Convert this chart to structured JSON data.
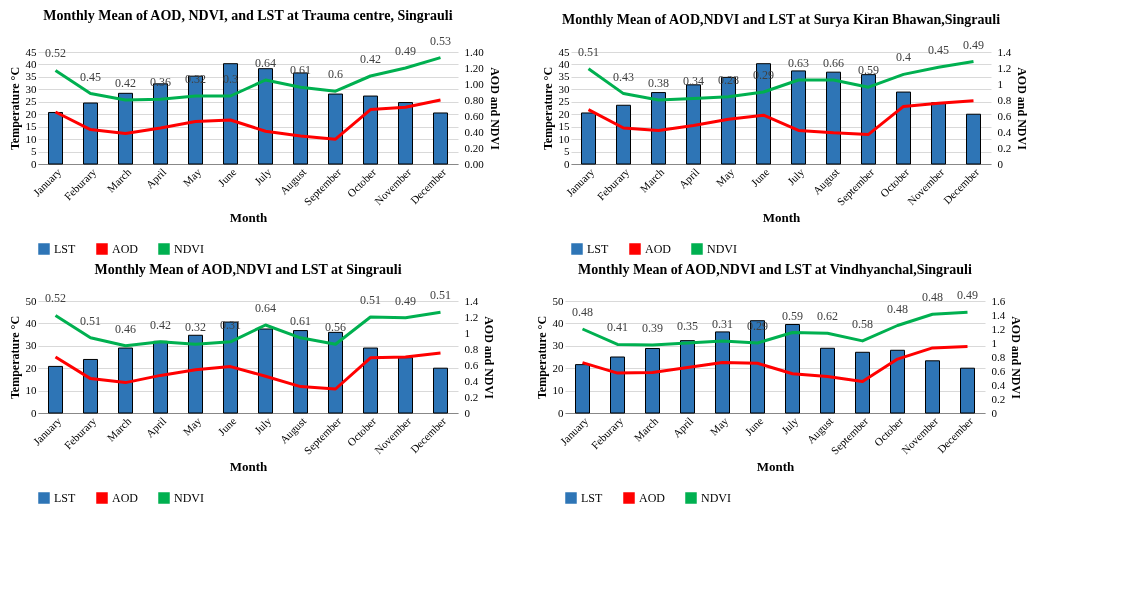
{
  "chart_data": [
    {
      "type": "bar",
      "title": "Monthly Mean of  AOD, NDVI, and LST at Trauma centre, Singrauli",
      "xlabel": "Month",
      "ylabel": "Temperature °C",
      "y2label": "AOD and NDVI",
      "categories": [
        "January",
        "Feburary",
        "March",
        "April",
        "May",
        "June",
        "July",
        "August",
        "September",
        "October",
        "November",
        "December"
      ],
      "ylim": [
        0,
        45
      ],
      "yticks": [
        0,
        5,
        10,
        15,
        20,
        25,
        30,
        35,
        40,
        45
      ],
      "y2lim": [
        0,
        1.4
      ],
      "y2ticks": [
        {
          "value": 0,
          "label": "0.00"
        },
        {
          "value": 0.2,
          "label": "0.20"
        },
        {
          "value": 0.4,
          "label": "0.40"
        },
        {
          "value": 0.6,
          "label": "0.60"
        },
        {
          "value": 0.8,
          "label": "0.80"
        },
        {
          "value": 1,
          "label": "1.00"
        },
        {
          "value": 1.2,
          "label": "1.20"
        },
        {
          "value": 1.4,
          "label": "1.40"
        }
      ],
      "grid": "y",
      "legend": "bottom",
      "series": [
        {
          "name": "LST",
          "color": "#2e75b6",
          "values": [
            20.7,
            24.5,
            28.4,
            32.2,
            35.3,
            40.3,
            38.3,
            36.6,
            28.1,
            27.3,
            24.7,
            20.5
          ]
        },
        {
          "name": "AOD",
          "type": "line",
          "axis": "y2",
          "color": "#ff0000",
          "values": [
            0.65,
            0.43,
            0.38,
            0.45,
            0.53,
            0.55,
            0.41,
            0.35,
            0.31,
            0.68,
            0.71,
            0.8
          ]
        },
        {
          "name": "NDVI",
          "type": "line",
          "axis": "y2",
          "color": "#00b050",
          "values": [
            1.17,
            0.88,
            0.8,
            0.81,
            0.85,
            0.85,
            1.05,
            0.96,
            0.91,
            1.1,
            1.2,
            1.33
          ]
        }
      ],
      "annotations": [
        "0.52",
        "0.45",
        "0.42",
        "0.36",
        "0.32",
        "0.3",
        "0.64",
        "0.61",
        "0.6",
        "0.42",
        "0.49",
        "0.53"
      ]
    },
    {
      "type": "bar",
      "title": "Monthly Mean of  AOD,NDVI and LST at Surya Kiran Bhawan,Singrauli",
      "xlabel": "Month",
      "ylabel": "Temperature °C",
      "y2label": "AOD and NDVI",
      "categories": [
        "January",
        "Feburary",
        "March",
        "April",
        "May",
        "June",
        "July",
        "August",
        "September",
        "October",
        "November",
        "December"
      ],
      "ylim": [
        0,
        45
      ],
      "yticks": [
        0,
        5,
        10,
        15,
        20,
        25,
        30,
        35,
        40,
        45
      ],
      "y2lim": [
        0,
        1.4
      ],
      "y2ticks": [
        0,
        0.2,
        0.4,
        0.6,
        0.8,
        1,
        1.2,
        1.4
      ],
      "grid": "y",
      "legend": "bottom",
      "series": [
        {
          "name": "LST",
          "color": "#2e75b6",
          "values": [
            20.5,
            23.6,
            28.7,
            31.8,
            34.8,
            40.3,
            37.4,
            36.9,
            35.9,
            28.9,
            24.6,
            20.0
          ]
        },
        {
          "name": "AOD",
          "type": "line",
          "axis": "y2",
          "color": "#ff0000",
          "values": [
            0.68,
            0.45,
            0.42,
            0.48,
            0.56,
            0.61,
            0.42,
            0.39,
            0.37,
            0.72,
            0.76,
            0.79
          ]
        },
        {
          "name": "NDVI",
          "type": "line",
          "axis": "y2",
          "color": "#00b050",
          "values": [
            1.19,
            0.88,
            0.8,
            0.82,
            0.84,
            0.9,
            1.05,
            1.05,
            0.96,
            1.12,
            1.21,
            1.28
          ]
        }
      ],
      "annotations": [
        "0.51",
        "0.43",
        "0.38",
        "0.34",
        "0.28",
        "0.29",
        "0.63",
        "0.66",
        "0.59",
        "0.4",
        "0.45",
        "0.49"
      ]
    },
    {
      "type": "bar",
      "title": "Monthly Mean of  AOD,NDVI and LST at Singrauli",
      "xlabel": "Month",
      "ylabel": "Temperature °C",
      "y2label": "AOD and NDVI",
      "categories": [
        "January",
        "Feburary",
        "March",
        "April",
        "May",
        "June",
        "July",
        "August",
        "September",
        "October",
        "November",
        "December"
      ],
      "ylim": [
        0,
        50
      ],
      "yticks": [
        0,
        10,
        20,
        30,
        40,
        50
      ],
      "y2lim": [
        0,
        1.4
      ],
      "y2ticks": [
        0,
        0.2,
        0.4,
        0.6,
        0.8,
        1,
        1.2,
        1.4
      ],
      "grid": "y",
      "legend": "bottom",
      "series": [
        {
          "name": "LST",
          "color": "#2e75b6",
          "values": [
            20.8,
            23.9,
            29.0,
            32.0,
            34.7,
            40.6,
            37.5,
            36.8,
            36.0,
            29.0,
            24.7,
            20.0
          ]
        },
        {
          "name": "AOD",
          "type": "line",
          "axis": "y2",
          "color": "#ff0000",
          "values": [
            0.7,
            0.43,
            0.38,
            0.47,
            0.54,
            0.58,
            0.46,
            0.33,
            0.3,
            0.69,
            0.7,
            0.75
          ]
        },
        {
          "name": "NDVI",
          "type": "line",
          "axis": "y2",
          "color": "#00b050",
          "values": [
            1.22,
            0.94,
            0.84,
            0.89,
            0.86,
            0.89,
            1.1,
            0.94,
            0.86,
            1.2,
            1.19,
            1.26
          ]
        }
      ],
      "annotations": [
        "0.52",
        "0.51",
        "0.46",
        "0.42",
        "0.32",
        "0.31",
        "0.64",
        "0.61",
        "0.56",
        "0.51",
        "0.49",
        "0.51"
      ]
    },
    {
      "type": "bar",
      "title": "Monthly Mean of  AOD,NDVI and LST at Vindhyanchal,Singrauli",
      "xlabel": "Month",
      "ylabel": "Temperature °C",
      "y2label": "AOD and NDVI",
      "categories": [
        "January",
        "Feburary",
        "March",
        "April",
        "May",
        "June",
        "July",
        "August",
        "September",
        "October",
        "November",
        "December"
      ],
      "ylim": [
        0,
        50
      ],
      "yticks": [
        0,
        10,
        20,
        30,
        40,
        50
      ],
      "y2lim": [
        0,
        1.6
      ],
      "y2ticks": [
        0,
        0.2,
        0.4,
        0.6,
        0.8,
        1,
        1.2,
        1.4,
        1.6
      ],
      "grid": "y",
      "legend": "bottom",
      "series": [
        {
          "name": "LST",
          "color": "#2e75b6",
          "values": [
            21.6,
            25.0,
            28.8,
            32.3,
            36.2,
            41.2,
            39.5,
            28.9,
            27.1,
            28.0,
            23.3,
            20.0
          ]
        },
        {
          "name": "AOD",
          "type": "line",
          "axis": "y2",
          "color": "#ff0000",
          "values": [
            0.72,
            0.57,
            0.58,
            0.65,
            0.72,
            0.71,
            0.56,
            0.52,
            0.45,
            0.77,
            0.93,
            0.95
          ]
        },
        {
          "name": "NDVI",
          "type": "line",
          "axis": "y2",
          "color": "#00b050",
          "values": [
            1.2,
            0.98,
            0.97,
            1,
            1.03,
            1,
            1.15,
            1.14,
            1.03,
            1.25,
            1.41,
            1.44
          ]
        }
      ],
      "annotations": [
        "0.48",
        "0.41",
        "0.39",
        "0.35",
        "0.31",
        "0.29",
        "0.59",
        "0.62",
        "0.58",
        "0.48",
        "0.48",
        "0.49"
      ]
    }
  ]
}
